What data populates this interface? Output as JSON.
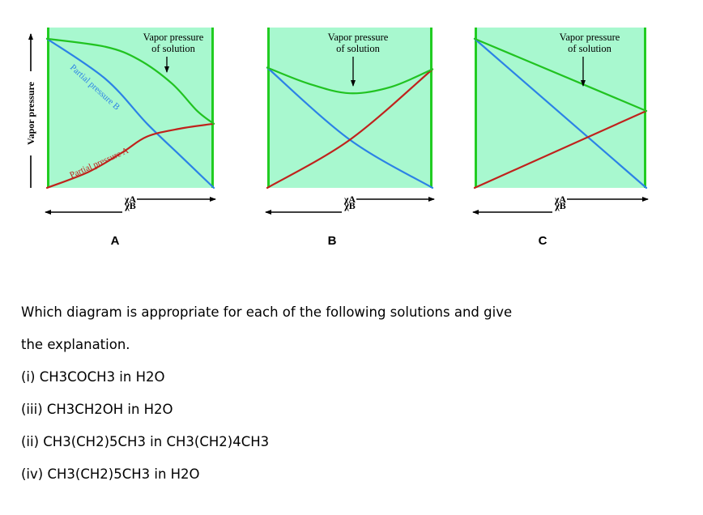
{
  "y_axis_label": "Vapor pressure",
  "chart_data": [
    {
      "type": "line",
      "panel_label": "A",
      "annotation": "Vapor pressure of solution",
      "series": [
        {
          "name": "Vapor pressure of solution",
          "color": "#21c321",
          "points": [
            [
              0,
              0.93
            ],
            [
              0.35,
              0.88
            ],
            [
              0.55,
              0.8
            ],
            [
              0.75,
              0.65
            ],
            [
              0.9,
              0.48
            ],
            [
              1,
              0.4
            ]
          ]
        },
        {
          "name": "Partial pressure B",
          "color": "#2c82e6",
          "points": [
            [
              0,
              0.93
            ],
            [
              0.35,
              0.68
            ],
            [
              0.6,
              0.4
            ],
            [
              0.8,
              0.2
            ],
            [
              1,
              0.0
            ]
          ]
        },
        {
          "name": "Partial pressure A",
          "color": "#c0221c",
          "points": [
            [
              0,
              0.0
            ],
            [
              0.25,
              0.1
            ],
            [
              0.45,
              0.22
            ],
            [
              0.6,
              0.32
            ],
            [
              0.8,
              0.37
            ],
            [
              1,
              0.4
            ]
          ]
        }
      ],
      "series_labels": [
        "Partial pressure B",
        "Partial pressure A"
      ]
    },
    {
      "type": "line",
      "panel_label": "B",
      "annotation": "Vapor pressure of solution",
      "series": [
        {
          "name": "Vapor pressure of solution",
          "color": "#21c321",
          "points": [
            [
              0,
              0.75
            ],
            [
              0.25,
              0.65
            ],
            [
              0.5,
              0.59
            ],
            [
              0.75,
              0.63
            ],
            [
              1,
              0.74
            ]
          ]
        },
        {
          "name": "Partial pressure B",
          "color": "#2c82e6",
          "points": [
            [
              0,
              0.75
            ],
            [
              0.5,
              0.3
            ],
            [
              1,
              0.0
            ]
          ]
        },
        {
          "name": "Partial pressure A",
          "color": "#c0221c",
          "points": [
            [
              0,
              0.0
            ],
            [
              0.5,
              0.3
            ],
            [
              1,
              0.74
            ]
          ]
        }
      ]
    },
    {
      "type": "line",
      "panel_label": "C",
      "annotation": "Vapor pressure of solution",
      "series": [
        {
          "name": "Vapor pressure of solution",
          "color": "#21c321",
          "points": [
            [
              0,
              0.93
            ],
            [
              1,
              0.48
            ]
          ]
        },
        {
          "name": "Partial pressure B",
          "color": "#2c82e6",
          "points": [
            [
              0,
              0.93
            ],
            [
              1,
              0.0
            ]
          ]
        },
        {
          "name": "Partial pressure A",
          "color": "#c0221c",
          "points": [
            [
              0,
              0.0
            ],
            [
              1,
              0.48
            ]
          ]
        }
      ]
    }
  ],
  "axis_symbols": {
    "xa": "χA",
    "xb": "χB"
  },
  "colors": {
    "panel_fill": "#a8f8cf",
    "border": "#22cc22",
    "blue": "#2c82e6",
    "red": "#c0221c",
    "green": "#21c321"
  },
  "question": {
    "line1": "Which diagram is appropriate for each of the following solutions and give",
    "line2": "the explanation.",
    "items": [
      "(i) CH3COCH3 in H2O",
      "(iii) CH3CH2OH in H2O",
      "(ii) CH3(CH2)5CH3 in CH3(CH2)4CH3",
      "(iv) CH3(CH2)5CH3 in H2O"
    ]
  }
}
